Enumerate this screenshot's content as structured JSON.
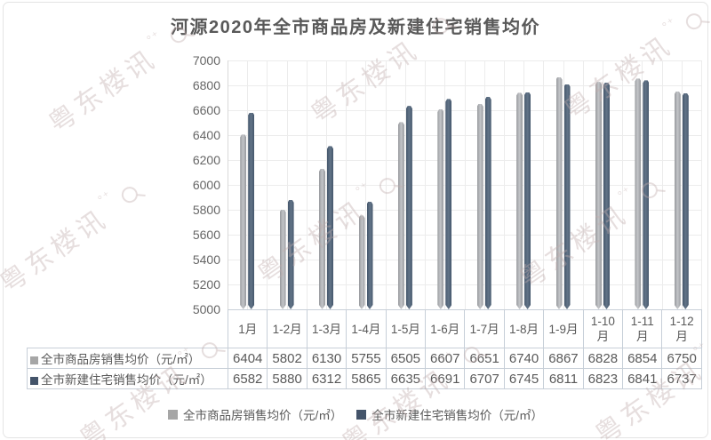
{
  "title": "河源2020年全市商品房及新建住宅销售均价",
  "watermark": {
    "text": "粤东楼讯",
    "suffix": "°⁺"
  },
  "colors": {
    "series1": "#a6a6a6",
    "series2": "#44546a",
    "series1_bar": "#a9abae",
    "series2_bar": "#51647b",
    "text": "#595959",
    "grid": "#ececec",
    "table_border": "#c7cfd8"
  },
  "chart_data": {
    "type": "bar",
    "title": "河源2020年全市商品房及新建住宅销售均价",
    "categories": [
      "1月",
      "1-2月",
      "1-3月",
      "1-4月",
      "1-5月",
      "1-6月",
      "1-7月",
      "1-8月",
      "1-9月",
      "1-10月",
      "1-11月",
      "1-12月"
    ],
    "series": [
      {
        "name": "全市商品房销售均价（元/㎡）",
        "color": "#a6a6a6",
        "values": [
          6404,
          5802,
          6130,
          5755,
          6505,
          6607,
          6651,
          6740,
          6867,
          6828,
          6854,
          6750
        ]
      },
      {
        "name": "全市新建住宅销售均价（元/㎡）",
        "color": "#44546a",
        "values": [
          6582,
          5880,
          6312,
          5865,
          6635,
          6691,
          6707,
          6745,
          6811,
          6823,
          6841,
          6737
        ]
      }
    ],
    "xlabel": "",
    "ylabel": "",
    "ylim": [
      5000,
      7000
    ],
    "ytick_step": 200,
    "yticks": [
      7000,
      6800,
      6600,
      6400,
      6200,
      6000,
      5800,
      5600,
      5400,
      5200,
      5000
    ],
    "grid": true,
    "legend_position": "bottom",
    "data_table_shown": true
  }
}
